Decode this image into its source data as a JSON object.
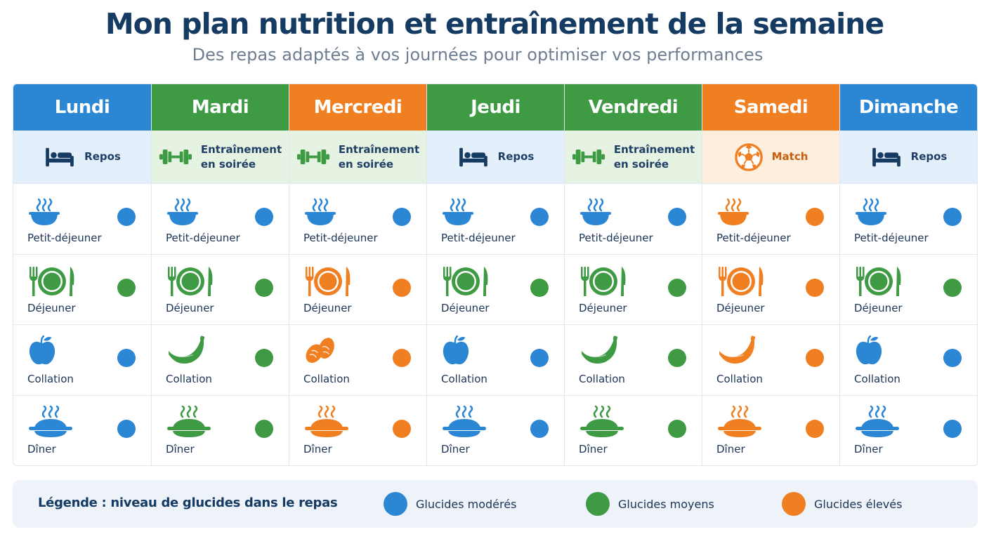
{
  "title": "Mon plan nutrition et entraînement de la semaine",
  "subtitle": "Des repas adaptés à vos journées pour optimiser vos performances",
  "colors": {
    "blue": "#2b86d4",
    "green": "#3f9a44",
    "orange": "#f07f22",
    "navy": "#163b63"
  },
  "days": [
    {
      "name": "Lundi",
      "header_color": "#2b86d4",
      "activity_bg": "#e3effb",
      "activity_icon": "bed-icon",
      "activity": "Repos",
      "meals": [
        {
          "label": "Petit-déjeuner",
          "icon": "bowl-icon",
          "carb_color": "#2b86d4"
        },
        {
          "label": "Déjeuner",
          "icon": "plate-icon",
          "carb_color": "#3f9a44"
        },
        {
          "label": "Collation",
          "icon": "apple-icon",
          "carb_color": "#2b86d4"
        },
        {
          "label": "Dîner",
          "icon": "hot-dish-icon",
          "carb_color": "#2b86d4"
        }
      ]
    },
    {
      "name": "Mardi",
      "header_color": "#3f9a44",
      "activity_bg": "#e6f3e2",
      "activity_icon": "dumbbell-icon",
      "activity": "Entraînement\nen soirée",
      "meals": [
        {
          "label": "Petit-déjeuner",
          "icon": "bowl-icon",
          "carb_color": "#2b86d4"
        },
        {
          "label": "Déjeuner",
          "icon": "plate-icon",
          "carb_color": "#3f9a44"
        },
        {
          "label": "Collation",
          "icon": "banana-icon",
          "carb_color": "#3f9a44"
        },
        {
          "label": "Dîner",
          "icon": "hot-dish-icon",
          "carb_color": "#3f9a44"
        }
      ]
    },
    {
      "name": "Mercredi",
      "header_color": "#f07f22",
      "activity_bg": "#e6f3e2",
      "activity_icon": "dumbbell-icon",
      "activity": "Entraînement\nen soirée",
      "meals": [
        {
          "label": "Petit-déjeuner",
          "icon": "bowl-icon",
          "carb_color": "#2b86d4"
        },
        {
          "label": "Déjeuner",
          "icon": "plate-icon",
          "carb_color": "#f07f22"
        },
        {
          "label": "Collation",
          "icon": "almonds-icon",
          "carb_color": "#f07f22"
        },
        {
          "label": "Dîner",
          "icon": "hot-dish-icon",
          "carb_color": "#f07f22"
        }
      ]
    },
    {
      "name": "Jeudi",
      "header_color": "#3f9a44",
      "activity_bg": "#e3effb",
      "activity_icon": "bed-icon",
      "activity": "Repos",
      "meals": [
        {
          "label": "Petit-déjeuner",
          "icon": "bowl-icon",
          "carb_color": "#2b86d4"
        },
        {
          "label": "Déjeuner",
          "icon": "plate-icon",
          "carb_color": "#3f9a44"
        },
        {
          "label": "Collation",
          "icon": "apple-icon",
          "carb_color": "#2b86d4"
        },
        {
          "label": "Dîner",
          "icon": "hot-dish-icon",
          "carb_color": "#2b86d4"
        }
      ]
    },
    {
      "name": "Vendredi",
      "header_color": "#3f9a44",
      "activity_bg": "#e6f3e2",
      "activity_icon": "dumbbell-icon",
      "activity": "Entraînement\nen soirée",
      "meals": [
        {
          "label": "Petit-déjeuner",
          "icon": "bowl-icon",
          "carb_color": "#2b86d4"
        },
        {
          "label": "Déjeuner",
          "icon": "plate-icon",
          "carb_color": "#3f9a44"
        },
        {
          "label": "Collation",
          "icon": "banana-icon",
          "carb_color": "#3f9a44"
        },
        {
          "label": "Dîner",
          "icon": "hot-dish-icon",
          "carb_color": "#3f9a44"
        }
      ]
    },
    {
      "name": "Samedi",
      "header_color": "#f07f22",
      "activity_bg": "#fdeedd",
      "activity_icon": "soccer-ball-icon",
      "activity": "Match",
      "meals": [
        {
          "label": "Petit-déjeuner",
          "icon": "bowl-icon",
          "carb_color": "#f07f22"
        },
        {
          "label": "Déjeuner",
          "icon": "plate-icon",
          "carb_color": "#f07f22"
        },
        {
          "label": "Collation",
          "icon": "banana-icon",
          "carb_color": "#f07f22"
        },
        {
          "label": "Dîner",
          "icon": "hot-dish-icon",
          "carb_color": "#f07f22"
        }
      ]
    },
    {
      "name": "Dimanche",
      "header_color": "#2b86d4",
      "activity_bg": "#e3effb",
      "activity_icon": "bed-icon",
      "activity": "Repos",
      "meals": [
        {
          "label": "Petit-déjeuner",
          "icon": "bowl-icon",
          "carb_color": "#2b86d4"
        },
        {
          "label": "Déjeuner",
          "icon": "plate-icon",
          "carb_color": "#3f9a44"
        },
        {
          "label": "Collation",
          "icon": "apple-icon",
          "carb_color": "#2b86d4"
        },
        {
          "label": "Dîner",
          "icon": "hot-dish-icon",
          "carb_color": "#2b86d4"
        }
      ]
    }
  ],
  "legend": {
    "title": "Légende : niveau de glucides dans le repas",
    "items": [
      {
        "label": "Glucides modérés",
        "color": "#2b86d4"
      },
      {
        "label": "Glucides moyens",
        "color": "#3f9a44"
      },
      {
        "label": "Glucides élevés",
        "color": "#f07f22"
      }
    ]
  }
}
